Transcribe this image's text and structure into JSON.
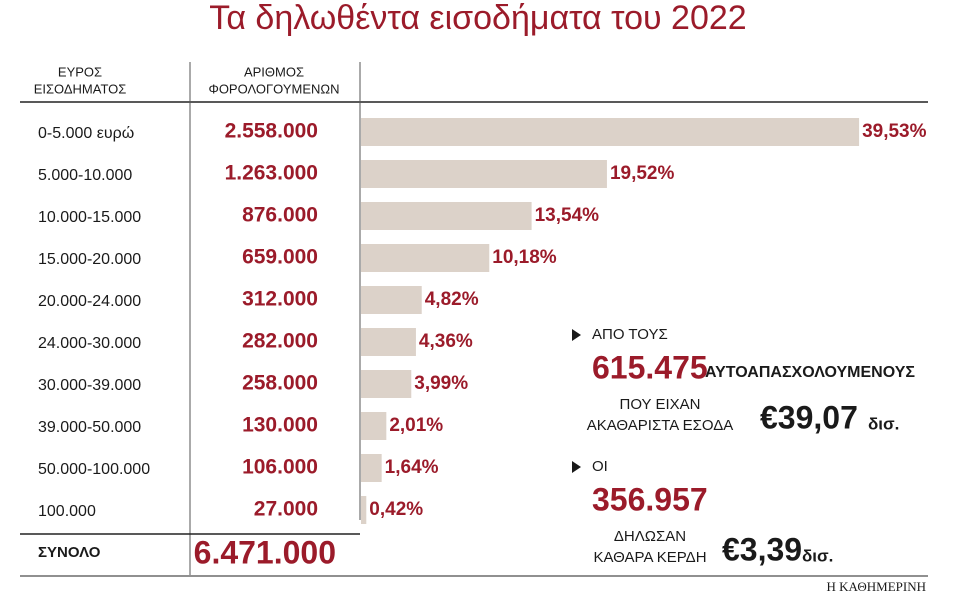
{
  "chart_data": {
    "type": "bar",
    "title": "Τα δηλωθέντα εισοδήματα του 2022",
    "column_headers": [
      [
        "ΕΥΡΟΣ",
        "ΕΙΣΟΔΗΜΑΤΟΣ"
      ],
      [
        "ΑΡΙΘΜΟΣ",
        "ΦΟΡΟΛΟΓΟΥΜΕΝΩΝ"
      ]
    ],
    "categories": [
      "0-5.000 ευρώ",
      "5.000-10.000",
      "10.000-15.000",
      "15.000-20.000",
      "20.000-24.000",
      "24.000-30.000",
      "30.000-39.000",
      "39.000-50.000",
      "50.000-100.000",
      "100.000"
    ],
    "taxpayers": [
      2558000,
      1263000,
      876000,
      659000,
      312000,
      282000,
      258000,
      130000,
      106000,
      27000
    ],
    "taxpayers_labels": [
      "2.558.000",
      "1.263.000",
      "876.000",
      "659.000",
      "312.000",
      "282.000",
      "258.000",
      "130.000",
      "106.000",
      "27.000"
    ],
    "values": [
      39.53,
      19.52,
      13.54,
      10.18,
      4.82,
      4.36,
      3.99,
      2.01,
      1.64,
      0.42
    ],
    "value_labels": [
      "39,53%",
      "19,52%",
      "13,54%",
      "10,18%",
      "4,82%",
      "4,36%",
      "3,99%",
      "2,01%",
      "1,64%",
      "0,42%"
    ],
    "color": "#dcd2c9",
    "total_name": "ΣΥΝΟΛΟ",
    "total": 6471000,
    "total_label": "6.471.000",
    "annotations": [
      {
        "lead": "ΑΠΟ ΤΟΥΣ",
        "count": 615475,
        "count_label": "615.475",
        "count_text": "ΑΥΤΟΑΠΑΣΧΟΛΟΥΜΕΝΟΥΣ",
        "text": [
          "ΠΟΥ ΕΙΧΑΝ",
          "ΑΚΑΘΑΡΙΣΤΑ ΕΣΟΔΑ"
        ],
        "amount": 39.07,
        "amount_label": "€39,07",
        "unit": "δισ."
      },
      {
        "lead": "ΟΙ",
        "count": 356957,
        "count_label": "356.957",
        "count_text": "",
        "text": [
          "ΔΗΛΩΣΑΝ",
          "ΚΑΘΑΡΑ ΚΕΡΔΗ"
        ],
        "amount": 3.39,
        "amount_label": "€3,39",
        "unit": "δισ."
      }
    ],
    "source": "Η ΚΑΘΗΜΕΡΙΝΗ"
  }
}
